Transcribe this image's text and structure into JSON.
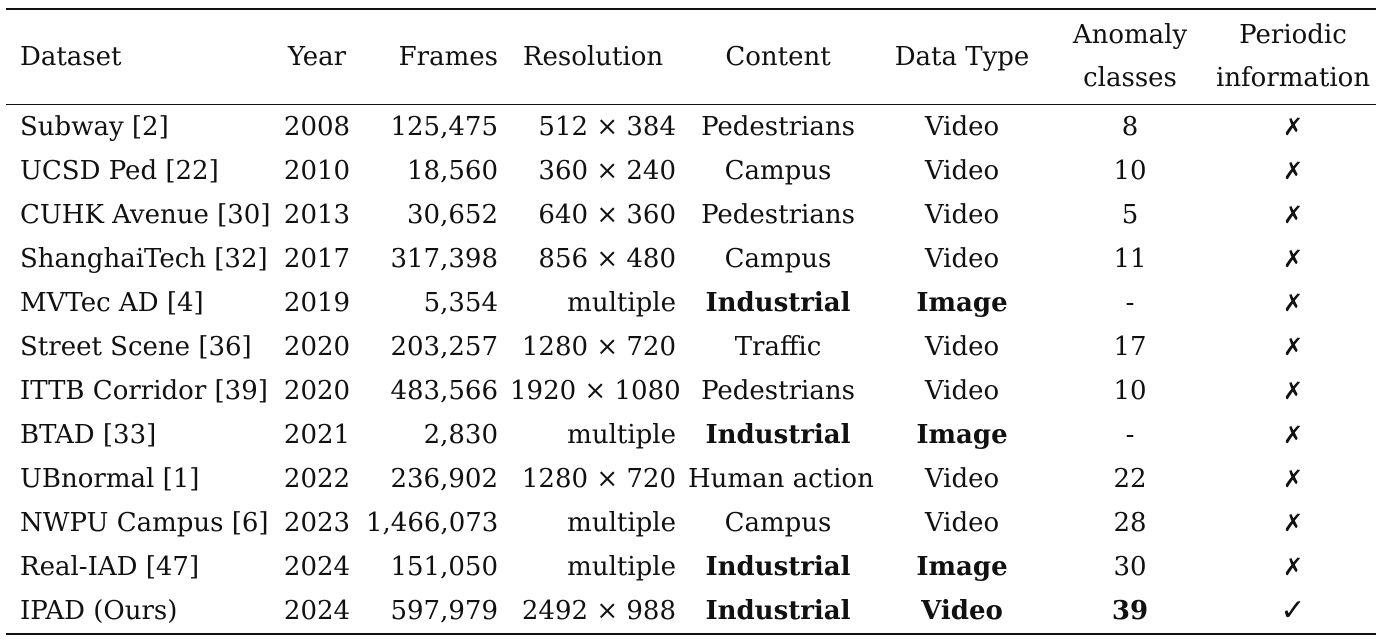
{
  "headers": {
    "dataset": "Dataset",
    "year": "Year",
    "frames": "Frames",
    "resolution": "Resolution",
    "content": "Content",
    "data_type": "Data Type",
    "anomaly_line1": "Anomaly",
    "anomaly_line2": "classes",
    "periodic_line1": "Periodic",
    "periodic_line2": "information"
  },
  "rows": [
    {
      "dataset": "Subway [2]",
      "year": "2008",
      "frames": "125,475",
      "resolution": "512 × 384",
      "content": "Pedestrians",
      "data_type": "Video",
      "anomaly_classes": "8",
      "periodic": "✗"
    },
    {
      "dataset": "UCSD Ped [22]",
      "year": "2010",
      "frames": "18,560",
      "resolution": "360 × 240",
      "content": "Campus",
      "data_type": "Video",
      "anomaly_classes": "10",
      "periodic": "✗"
    },
    {
      "dataset": "CUHK Avenue [30]",
      "year": "2013",
      "frames": "30,652",
      "resolution": "640 × 360",
      "content": "Pedestrians",
      "data_type": "Video",
      "anomaly_classes": "5",
      "periodic": "✗"
    },
    {
      "dataset": "ShanghaiTech [32]",
      "year": "2017",
      "frames": "317,398",
      "resolution": "856 × 480",
      "content": "Campus",
      "data_type": "Video",
      "anomaly_classes": "11",
      "periodic": "✗"
    },
    {
      "dataset": "MVTec AD [4]",
      "year": "2019",
      "frames": "5,354",
      "resolution": "multiple",
      "content": "Industrial",
      "data_type": "Image",
      "anomaly_classes": "-",
      "periodic": "✗"
    },
    {
      "dataset": "Street Scene [36]",
      "year": "2020",
      "frames": "203,257",
      "resolution": "1280 × 720",
      "content": "Traffic",
      "data_type": "Video",
      "anomaly_classes": "17",
      "periodic": "✗"
    },
    {
      "dataset": "ITTB Corridor [39]",
      "year": "2020",
      "frames": "483,566",
      "resolution": "1920 × 1080",
      "content": "Pedestrians",
      "data_type": "Video",
      "anomaly_classes": "10",
      "periodic": "✗"
    },
    {
      "dataset": "BTAD [33]",
      "year": "2021",
      "frames": "2,830",
      "resolution": "multiple",
      "content": "Industrial",
      "data_type": "Image",
      "anomaly_classes": "-",
      "periodic": "✗"
    },
    {
      "dataset": "UBnormal [1]",
      "year": "2022",
      "frames": "236,902",
      "resolution": "1280 × 720",
      "content": "Human action",
      "data_type": "Video",
      "anomaly_classes": "22",
      "periodic": "✗"
    },
    {
      "dataset": "NWPU Campus [6]",
      "year": "2023",
      "frames": "1,466,073",
      "resolution": "multiple",
      "content": "Campus",
      "data_type": "Video",
      "anomaly_classes": "28",
      "periodic": "✗"
    },
    {
      "dataset": "Real-IAD [47]",
      "year": "2024",
      "frames": "151,050",
      "resolution": "multiple",
      "content": "Industrial",
      "data_type": "Image",
      "anomaly_classes": "30",
      "periodic": "✗"
    },
    {
      "dataset": "IPAD (Ours)",
      "year": "2024",
      "frames": "597,979",
      "resolution": "2492 × 988",
      "content": "Industrial",
      "data_type": "Video",
      "anomaly_classes": "39",
      "periodic": "✓"
    }
  ]
}
